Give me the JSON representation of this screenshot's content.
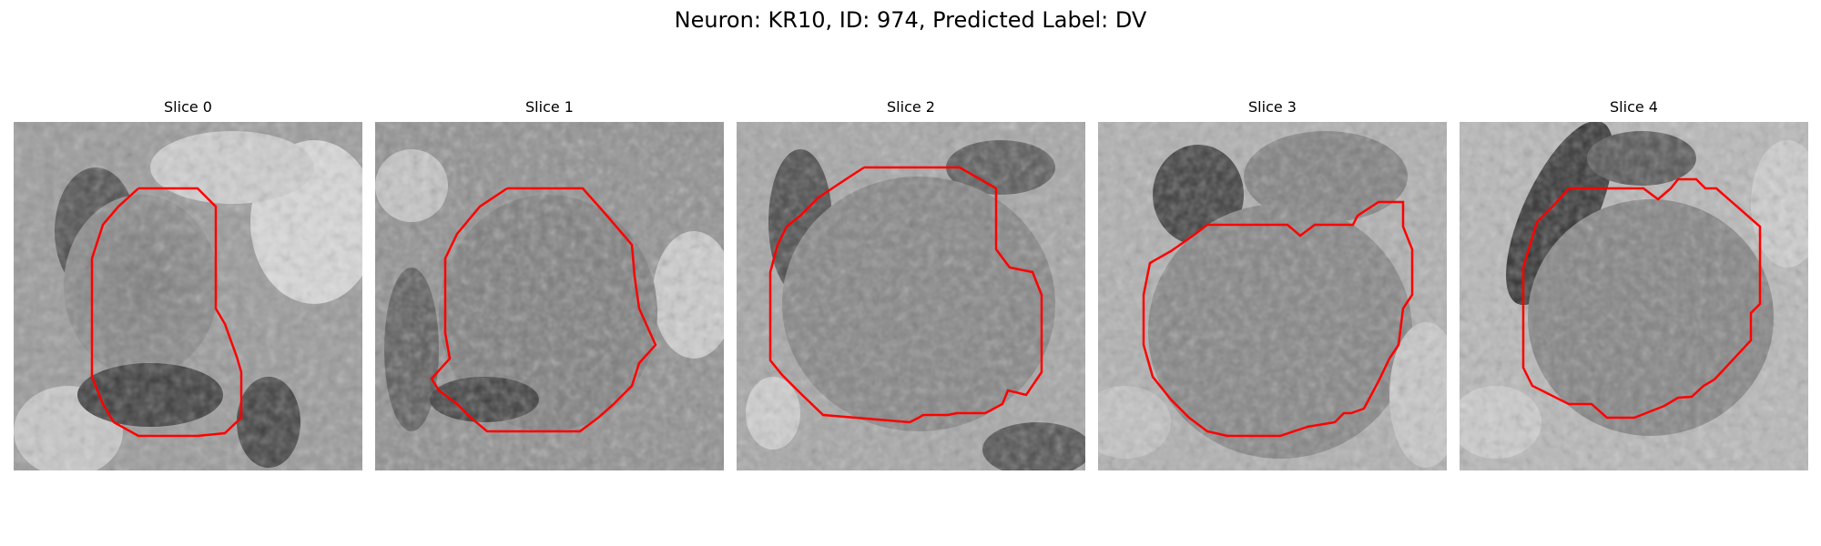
{
  "figure": {
    "title": "Neuron: KR10, ID: 974, Predicted Label: DV"
  },
  "panels": [
    {
      "title": "Slice 0"
    },
    {
      "title": "Slice 1"
    },
    {
      "title": "Slice 2"
    },
    {
      "title": "Slice 3"
    },
    {
      "title": "Slice 4"
    }
  ],
  "colors": {
    "contour": "#ff0000",
    "background": "#ffffff"
  }
}
